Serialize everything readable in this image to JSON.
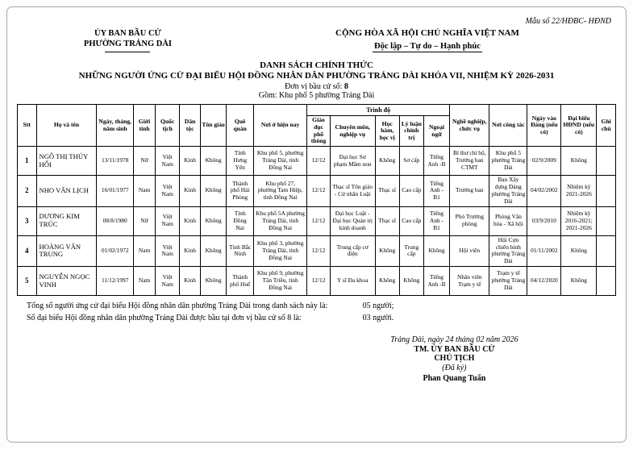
{
  "form_number": "Mẫu số 22/HĐBC- HĐND",
  "issuer": {
    "line1": "ỦY BAN BẦU CỬ",
    "line2": "PHƯỜNG TRẢNG DÀI"
  },
  "national_header": {
    "line1": "CỘNG HÒA XÃ HỘI CHỦ NGHĨA VIỆT NAM",
    "line2": "Độc lập – Tự do – Hạnh phúc"
  },
  "title": {
    "line1": "DANH SÁCH CHÍNH THỨC",
    "line2": "NHỮNG NGƯỜI ỨNG CỬ ĐẠI BIỂU HỘI ĐỒNG NHÂN DÂN PHƯỜNG TRẢNG DÀI KHÓA VII, NHIỆM KỲ 2026-2031",
    "unit_label": "Đơn vị bầu cử số:",
    "unit_number": "8",
    "scope": "Gồm: Khu phố 5 phường Trảng Dài"
  },
  "table": {
    "headers": {
      "stt": "Stt",
      "name": "Họ và tên",
      "dob": "Ngày, tháng, năm sinh",
      "gender": "Giới tính",
      "nationality": "Quốc tịch",
      "ethnicity": "Dân tộc",
      "religion": "Tôn giáo",
      "hometown": "Quê quán",
      "residence": "Nơi ở hiện nay",
      "qualification_group": "Trình độ",
      "general_education": "Giáo dục phổ thông",
      "professional": "Chuyên môn, nghiệp vụ",
      "academic": "Học hàm, học vị",
      "political_theory": "Lý luận chính trị",
      "foreign_language": "Ngoại ngữ",
      "occupation": "Nghề nghiệp, chức vụ",
      "workplace": "Nơi công tác",
      "party_join_date": "Ngày vào Đảng (nếu có)",
      "council_member": "Đại biểu HĐND (nếu có)",
      "notes": "Ghi chú"
    },
    "rows": [
      [
        "1",
        "NGÔ THỊ THÚY HỔI",
        "13/11/1978",
        "Nữ",
        "Việt Nam",
        "Kinh",
        "Không",
        "Tỉnh Hưng Yên",
        "Khu phố 5, phường Trảng Dài, tỉnh Đồng Nai",
        "12/12",
        "Đại học Sư phạm Mầm non",
        "Không",
        "Sơ cấp",
        "Tiếng Anh -B",
        "Bí thư chi bộ, Trưởng ban CTMT",
        "Khu phố 5 phường Trảng Dài",
        "02/9/2009",
        "Không",
        ""
      ],
      [
        "2",
        "NHO VĂN LỊCH",
        "16/01/1977",
        "Nam",
        "Việt Nam",
        "Kinh",
        "Không",
        "Thành phố Hải Phòng",
        "Khu phố 27, phường Tam Hiệp, tỉnh Đồng Nai",
        "12/12",
        "Thạc sĩ Tôn giáo - Cử nhân Luật",
        "Thạc sĩ",
        "Cao cấp",
        "Tiếng Anh - B1",
        "Trưởng ban",
        "Ban Xây dựng Đảng phường Trảng Dài",
        "04/02/2002",
        "Nhiệm kỳ 2021-2026",
        ""
      ],
      [
        "3",
        "DƯƠNG KIM TRÚC",
        "08/8/1980",
        "Nữ",
        "Việt Nam",
        "Kinh",
        "Không",
        "Tỉnh Đồng Nai",
        "Khu phố 5A phường Trảng Dài, tỉnh Đồng Nai",
        "12/12",
        "Đại học Luật - Đại học Quản trị kinh doanh",
        "Thạc sĩ",
        "Cao cấp",
        "Tiếng Anh - B1",
        "Phó Trưởng phòng",
        "Phòng Văn hóa - Xã hội",
        "03/9/2010",
        "Nhiệm kỳ 2016-2021; 2021-2026",
        ""
      ],
      [
        "4",
        "HOÀNG VĂN TRUNG",
        "01/02/1972",
        "Nam",
        "Việt Nam",
        "Kinh",
        "Không",
        "Tỉnh Bắc Ninh",
        "Khu phố 3, phường Trảng Dài, tỉnh Đồng Nai",
        "12/12",
        "Trung cấp cơ điện",
        "Không",
        "Trung cấp",
        "Không",
        "Hội viên",
        "Hội Cựu chiến binh phường Trảng Dài",
        "01/11/2002",
        "Không",
        ""
      ],
      [
        "5",
        "NGUYỄN NGỌC VINH",
        "11/12/1997",
        "Nam",
        "Việt Nam",
        "Kinh",
        "Không",
        "Thành phố Huế",
        "Khu phố 9, phường Tân Triều, tỉnh Đồng Nai",
        "12/12",
        "Y sĩ Đa khoa",
        "Không",
        "Không",
        "Tiếng Anh -B",
        "Nhân viên Trạm y tế",
        "Trạm y tế phường Trảng Dài",
        "04/12/2020",
        "Không",
        ""
      ]
    ]
  },
  "totals": {
    "line1_label": "Tổng số người ứng cử đại biểu Hội đồng nhân dân phường Trảng Dài trong danh sách này là:",
    "line1_value": "05 người;",
    "line2_label": "Số đại biểu Hội đồng nhân dân phường  Trảng Dài được bầu tại đơn vị bầu cử số 8 là:",
    "line2_value": "03 người."
  },
  "signature": {
    "place_date": "Trảng Dài, ngày 24 tháng 02 năm 2026",
    "org_line": "TM. ỦY BAN BẦU CỬ",
    "title_line": "CHỦ TỊCH",
    "signed_note": "(Đã ký)",
    "signer_name": "Phan Quang Tuấn"
  }
}
